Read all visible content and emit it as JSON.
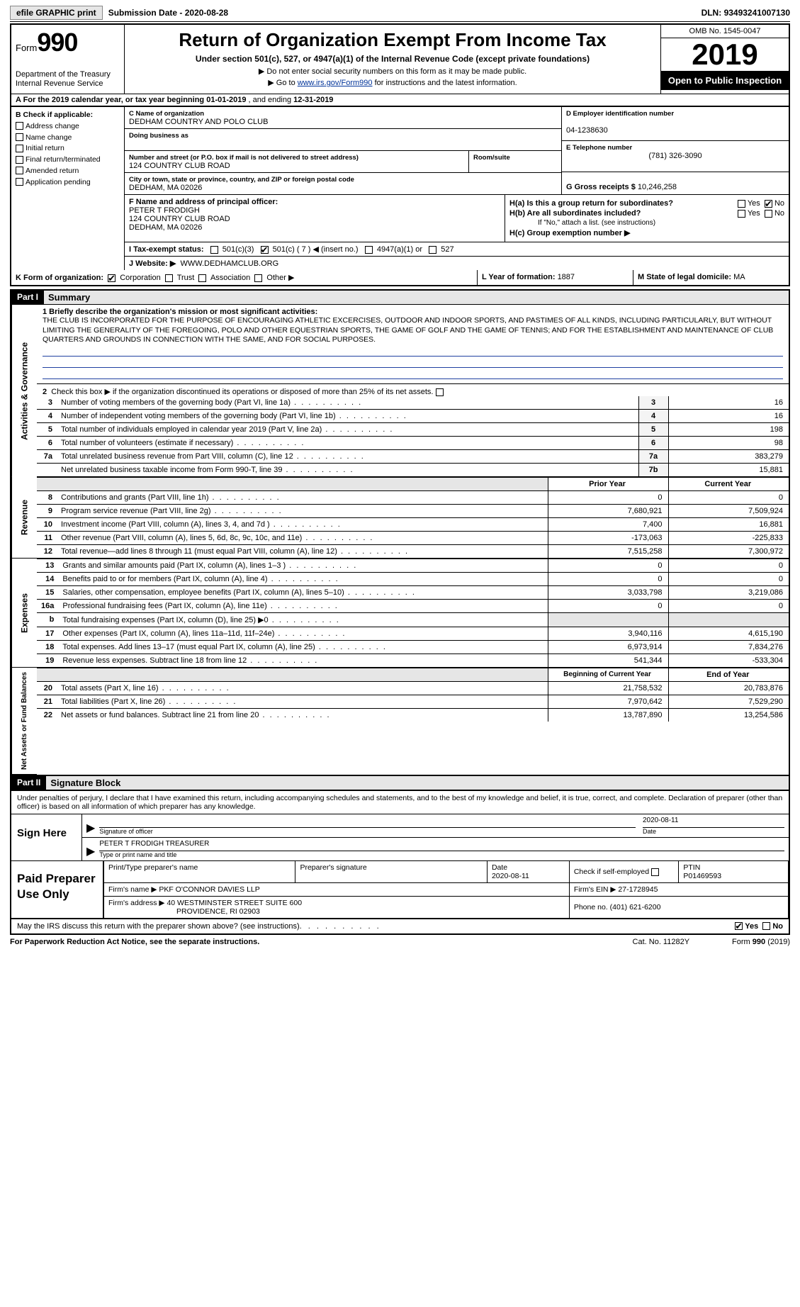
{
  "topbar": {
    "efile_btn": "efile GRAPHIC print",
    "sub_date_label": "Submission Date - ",
    "sub_date": "2020-08-28",
    "dln_label": "DLN: ",
    "dln": "93493241007130"
  },
  "header": {
    "form_word": "Form",
    "form_num": "990",
    "title": "Return of Organization Exempt From Income Tax",
    "subtitle": "Under section 501(c), 527, or 4947(a)(1) of the Internal Revenue Code (except private foundations)",
    "note1": "▶ Do not enter social security numbers on this form as it may be made public.",
    "note2_pre": "▶ Go to ",
    "note2_link": "www.irs.gov/Form990",
    "note2_post": " for instructions and the latest information.",
    "dept": "Department of the Treasury\nInternal Revenue Service",
    "omb": "OMB No. 1545-0047",
    "year": "2019",
    "inspect": "Open to Public Inspection"
  },
  "rowA": {
    "text_pre": "A  For the 2019 calendar year, or tax year beginning ",
    "begin": "01-01-2019",
    "mid": "  , and ending ",
    "end": "12-31-2019"
  },
  "boxB": {
    "label": "B Check if applicable:",
    "items": [
      "Address change",
      "Name change",
      "Initial return",
      "Final return/terminated",
      "Amended return",
      "Application pending"
    ]
  },
  "boxC": {
    "label": "C Name of organization",
    "name": "DEDHAM COUNTRY AND POLO CLUB",
    "dba_label": "Doing business as",
    "dba": "",
    "addr_label": "Number and street (or P.O. box if mail is not delivered to street address)",
    "room_label": "Room/suite",
    "addr": "124 COUNTRY CLUB ROAD",
    "city_label": "City or town, state or province, country, and ZIP or foreign postal code",
    "city": "DEDHAM, MA  02026"
  },
  "boxD": {
    "label": "D Employer identification number",
    "val": "04-1238630"
  },
  "boxE": {
    "label": "E Telephone number",
    "val": "(781) 326-3090"
  },
  "boxG": {
    "label": "G Gross receipts $ ",
    "val": "10,246,258"
  },
  "boxF": {
    "label": "F Name and address of principal officer:",
    "name": "PETER T FRODIGH",
    "addr1": "124 COUNTRY CLUB ROAD",
    "addr2": "DEDHAM, MA  02026"
  },
  "boxH": {
    "a": "H(a)  Is this a group return for subordinates?",
    "b": "H(b)  Are all subordinates included?",
    "b_note": "If \"No,\" attach a list. (see instructions)",
    "c": "H(c)  Group exemption number ▶",
    "yes": "Yes",
    "no": "No"
  },
  "rowI": {
    "label": "I   Tax-exempt status:",
    "opts": [
      "501(c)(3)",
      "501(c) ( 7 ) ◀ (insert no.)",
      "4947(a)(1) or",
      "527"
    ],
    "checked_index": 1
  },
  "rowJ": {
    "label": "J   Website: ▶",
    "val": "WWW.DEDHAMCLUB.ORG"
  },
  "rowK": {
    "label": "K Form of organization:",
    "opts": [
      "Corporation",
      "Trust",
      "Association",
      "Other ▶"
    ],
    "checked_index": 0,
    "L": "L Year of formation: ",
    "L_val": "1887",
    "M": "M State of legal domicile: ",
    "M_val": "MA"
  },
  "part1": {
    "hdr": "Part I",
    "title": "Summary",
    "q1_label": "1  Briefly describe the organization's mission or most significant activities:",
    "mission": "THE CLUB IS INCORPORATED FOR THE PURPOSE OF ENCOURAGING ATHLETIC EXCERCISES, OUTDOOR AND INDOOR SPORTS, AND PASTIMES OF ALL KINDS, INCLUDING PARTICULARLY, BUT WITHOUT LIMITING THE GENERALITY OF THE FOREGOING, POLO AND OTHER EQUESTRIAN SPORTS, THE GAME OF GOLF AND THE GAME OF TENNIS; AND FOR THE ESTABLISHMENT AND MAINTENANCE OF CLUB QUARTERS AND GROUNDS IN CONNECTION WITH THE SAME, AND FOR SOCIAL PURPOSES.",
    "q2": "Check this box ▶      if the organization discontinued its operations or disposed of more than 25% of its net assets.",
    "lines_gov": [
      {
        "n": "3",
        "t": "Number of voting members of the governing body (Part VI, line 1a)",
        "box": "3",
        "v": "16"
      },
      {
        "n": "4",
        "t": "Number of independent voting members of the governing body (Part VI, line 1b)",
        "box": "4",
        "v": "16"
      },
      {
        "n": "5",
        "t": "Total number of individuals employed in calendar year 2019 (Part V, line 2a)",
        "box": "5",
        "v": "198"
      },
      {
        "n": "6",
        "t": "Total number of volunteers (estimate if necessary)",
        "box": "6",
        "v": "98"
      },
      {
        "n": "7a",
        "t": "Total unrelated business revenue from Part VIII, column (C), line 12",
        "box": "7a",
        "v": "383,279"
      },
      {
        "n": "",
        "t": "Net unrelated business taxable income from Form 990-T, line 39",
        "box": "7b",
        "v": "15,881"
      }
    ],
    "hdr_prior": "Prior Year",
    "hdr_curr": "Current Year",
    "lines_rev": [
      {
        "n": "8",
        "t": "Contributions and grants (Part VIII, line 1h)",
        "p": "0",
        "c": "0"
      },
      {
        "n": "9",
        "t": "Program service revenue (Part VIII, line 2g)",
        "p": "7,680,921",
        "c": "7,509,924"
      },
      {
        "n": "10",
        "t": "Investment income (Part VIII, column (A), lines 3, 4, and 7d )",
        "p": "7,400",
        "c": "16,881"
      },
      {
        "n": "11",
        "t": "Other revenue (Part VIII, column (A), lines 5, 6d, 8c, 9c, 10c, and 11e)",
        "p": "-173,063",
        "c": "-225,833"
      },
      {
        "n": "12",
        "t": "Total revenue—add lines 8 through 11 (must equal Part VIII, column (A), line 12)",
        "p": "7,515,258",
        "c": "7,300,972"
      }
    ],
    "lines_exp": [
      {
        "n": "13",
        "t": "Grants and similar amounts paid (Part IX, column (A), lines 1–3 )",
        "p": "0",
        "c": "0"
      },
      {
        "n": "14",
        "t": "Benefits paid to or for members (Part IX, column (A), line 4)",
        "p": "0",
        "c": "0"
      },
      {
        "n": "15",
        "t": "Salaries, other compensation, employee benefits (Part IX, column (A), lines 5–10)",
        "p": "3,033,798",
        "c": "3,219,086"
      },
      {
        "n": "16a",
        "t": "Professional fundraising fees (Part IX, column (A), line 11e)",
        "p": "0",
        "c": "0"
      },
      {
        "n": "b",
        "t": "Total fundraising expenses (Part IX, column (D), line 25) ▶0",
        "p": "",
        "c": "",
        "shade": true
      },
      {
        "n": "17",
        "t": "Other expenses (Part IX, column (A), lines 11a–11d, 11f–24e)",
        "p": "3,940,116",
        "c": "4,615,190"
      },
      {
        "n": "18",
        "t": "Total expenses. Add lines 13–17 (must equal Part IX, column (A), line 25)",
        "p": "6,973,914",
        "c": "7,834,276"
      },
      {
        "n": "19",
        "t": "Revenue less expenses. Subtract line 18 from line 12",
        "p": "541,344",
        "c": "-533,304"
      }
    ],
    "hdr_begin": "Beginning of Current Year",
    "hdr_end": "End of Year",
    "lines_net": [
      {
        "n": "20",
        "t": "Total assets (Part X, line 16)",
        "p": "21,758,532",
        "c": "20,783,876"
      },
      {
        "n": "21",
        "t": "Total liabilities (Part X, line 26)",
        "p": "7,970,642",
        "c": "7,529,290"
      },
      {
        "n": "22",
        "t": "Net assets or fund balances. Subtract line 21 from line 20",
        "p": "13,787,890",
        "c": "13,254,586"
      }
    ],
    "vtab_gov": "Activities & Governance",
    "vtab_rev": "Revenue",
    "vtab_exp": "Expenses",
    "vtab_net": "Net Assets or Fund Balances"
  },
  "part2": {
    "hdr": "Part II",
    "title": "Signature Block",
    "declare": "Under penalties of perjury, I declare that I have examined this return, including accompanying schedules and statements, and to the best of my knowledge and belief, it is true, correct, and complete. Declaration of preparer (other than officer) is based on all information of which preparer has any knowledge.",
    "sign_here": "Sign Here",
    "sig_officer": "Signature of officer",
    "sig_date": "Date",
    "sig_date_val": "2020-08-11",
    "officer_name": "PETER T FRODIGH TREASURER",
    "type_name": "Type or print name and title",
    "paid": "Paid Preparer Use Only",
    "prep_name_lbl": "Print/Type preparer's name",
    "prep_sig_lbl": "Preparer's signature",
    "prep_date_lbl": "Date",
    "prep_date": "2020-08-11",
    "check_self": "Check        if self-employed",
    "ptin_lbl": "PTIN",
    "ptin": "P01469593",
    "firm_name_lbl": "Firm's name   ▶ ",
    "firm_name": "PKF O'CONNOR DAVIES LLP",
    "firm_ein_lbl": "Firm's EIN ▶ ",
    "firm_ein": "27-1728945",
    "firm_addr_lbl": "Firm's address ▶ ",
    "firm_addr1": "40 WESTMINSTER STREET SUITE 600",
    "firm_addr2": "PROVIDENCE, RI  02903",
    "phone_lbl": "Phone no. ",
    "phone": "(401) 621-6200",
    "may_irs": "May the IRS discuss this return with the preparer shown above? (see instructions)",
    "yes": "Yes",
    "no": "No"
  },
  "footer": {
    "pra": "For Paperwork Reduction Act Notice, see the separate instructions.",
    "cat": "Cat. No. 11282Y",
    "form": "Form 990 (2019)"
  }
}
